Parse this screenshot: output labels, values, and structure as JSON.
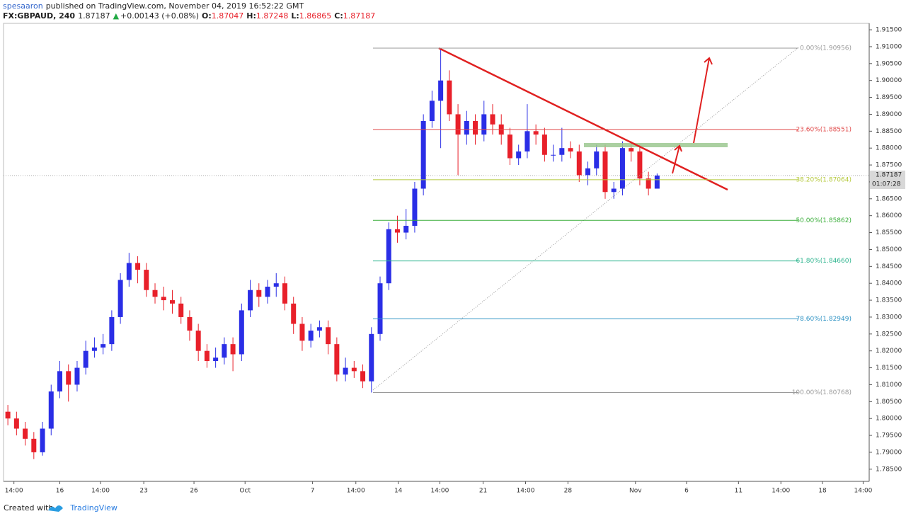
{
  "header": {
    "author": "spesaaron",
    "published": "published on TradingView.com, November 04, 2019 16:52:22 GMT",
    "symbol": "FX:GBPAUD, 240",
    "last": "1.87187",
    "change_arrow": "▲",
    "change": "+0.00143 (+0.08%)",
    "ohlc": [
      {
        "label": "O:",
        "value": "1.87047"
      },
      {
        "label": "H:",
        "value": "1.87248"
      },
      {
        "label": "L:",
        "value": "1.86865"
      },
      {
        "label": "C:",
        "value": "1.87187"
      }
    ]
  },
  "footer": {
    "created": "Created with",
    "brand": "TradingView"
  },
  "chart_data": {
    "type": "candlestick",
    "up_color": "#2a2ee6",
    "down_color": "#e8202a",
    "x": [
      0.5,
      1.5,
      2.5,
      3.5,
      4.5,
      5.5,
      6.5,
      7.5,
      8.5,
      9.5,
      10.5,
      11.5,
      12.5,
      13.5,
      14.5,
      15.5,
      16.5,
      17.5,
      18.5,
      19.5,
      20.5,
      21.5,
      22.5,
      23.5,
      24.5,
      25.5,
      26.5,
      27.5,
      28.5,
      29.5,
      30.5,
      31.5,
      32.5,
      33.5,
      34.5,
      35.5,
      36.5,
      37.5,
      38.5,
      39.5,
      40.5,
      41.5,
      42.5,
      43.5,
      44.5,
      45.5,
      46.5,
      47.5,
      48.5,
      49.5,
      50.5,
      51.5,
      52.5,
      53.5,
      54.5,
      55.5,
      56.5,
      57.5,
      58.5,
      59.5,
      60.5,
      61.5,
      62.5,
      63.5,
      64.5,
      65.5,
      66.5,
      67.5,
      68.5,
      69.5,
      70.5,
      71.5,
      72.5,
      73.5,
      74.5,
      75.5
    ],
    "open": [
      1.802,
      1.8,
      1.797,
      1.794,
      1.79,
      1.797,
      1.808,
      1.814,
      1.81,
      1.815,
      1.82,
      1.821,
      1.822,
      1.83,
      1.841,
      1.846,
      1.844,
      1.838,
      1.836,
      1.835,
      1.834,
      1.83,
      1.826,
      1.82,
      1.817,
      1.818,
      1.822,
      1.819,
      1.832,
      1.838,
      1.836,
      1.839,
      1.84,
      1.834,
      1.828,
      1.823,
      1.826,
      1.827,
      1.822,
      1.813,
      1.815,
      1.814,
      1.811,
      1.825,
      1.84,
      1.856,
      1.855,
      1.857,
      1.868,
      1.888,
      1.894,
      1.9,
      1.89,
      1.884,
      1.888,
      1.884,
      1.89,
      1.887,
      1.884,
      1.877,
      1.879,
      1.885,
      1.884,
      1.878,
      1.878,
      1.88,
      1.879,
      1.872,
      1.874,
      1.879,
      1.867,
      1.868,
      1.88,
      1.879,
      1.871,
      1.868
    ],
    "high": [
      1.804,
      1.802,
      1.799,
      1.796,
      1.799,
      1.81,
      1.817,
      1.816,
      1.817,
      1.823,
      1.824,
      1.825,
      1.832,
      1.843,
      1.849,
      1.848,
      1.846,
      1.84,
      1.839,
      1.838,
      1.836,
      1.832,
      1.828,
      1.822,
      1.821,
      1.824,
      1.824,
      1.834,
      1.841,
      1.84,
      1.841,
      1.843,
      1.842,
      1.836,
      1.83,
      1.828,
      1.829,
      1.829,
      1.824,
      1.818,
      1.817,
      1.816,
      1.827,
      1.842,
      1.858,
      1.86,
      1.862,
      1.87,
      1.89,
      1.897,
      1.90956,
      1.903,
      1.893,
      1.891,
      1.89,
      1.894,
      1.893,
      1.89,
      1.886,
      1.881,
      1.893,
      1.887,
      1.886,
      1.881,
      1.886,
      1.882,
      1.881,
      1.876,
      1.881,
      1.881,
      1.87,
      1.882,
      1.882,
      1.881,
      1.873,
      1.87248
    ],
    "low": [
      1.798,
      1.795,
      1.792,
      1.788,
      1.789,
      1.795,
      1.806,
      1.805,
      1.808,
      1.813,
      1.818,
      1.819,
      1.82,
      1.828,
      1.839,
      1.84,
      1.836,
      1.834,
      1.832,
      1.831,
      1.828,
      1.823,
      1.817,
      1.815,
      1.815,
      1.816,
      1.814,
      1.817,
      1.83,
      1.833,
      1.834,
      1.836,
      1.832,
      1.825,
      1.82,
      1.821,
      1.824,
      1.819,
      1.811,
      1.811,
      1.812,
      1.809,
      1.80768,
      1.823,
      1.838,
      1.852,
      1.853,
      1.855,
      1.866,
      1.886,
      1.88,
      1.888,
      1.872,
      1.881,
      1.881,
      1.882,
      1.884,
      1.881,
      1.875,
      1.875,
      1.877,
      1.881,
      1.876,
      1.876,
      1.876,
      1.877,
      1.87,
      1.869,
      1.872,
      1.865,
      1.865,
      1.866,
      1.876,
      1.869,
      1.866,
      1.86865
    ],
    "close": [
      1.8,
      1.797,
      1.794,
      1.79,
      1.797,
      1.808,
      1.814,
      1.81,
      1.815,
      1.82,
      1.821,
      1.822,
      1.83,
      1.841,
      1.846,
      1.844,
      1.838,
      1.836,
      1.835,
      1.834,
      1.83,
      1.826,
      1.82,
      1.817,
      1.818,
      1.822,
      1.819,
      1.832,
      1.838,
      1.836,
      1.839,
      1.84,
      1.834,
      1.828,
      1.823,
      1.826,
      1.827,
      1.822,
      1.813,
      1.815,
      1.814,
      1.811,
      1.825,
      1.84,
      1.856,
      1.855,
      1.857,
      1.868,
      1.888,
      1.894,
      1.9,
      1.89,
      1.884,
      1.888,
      1.884,
      1.89,
      1.887,
      1.884,
      1.877,
      1.879,
      1.885,
      1.884,
      1.878,
      1.878,
      1.88,
      1.879,
      1.872,
      1.874,
      1.879,
      1.867,
      1.868,
      1.88,
      1.879,
      1.871,
      1.868,
      1.87187
    ],
    "xlim": [
      0,
      100
    ],
    "ylim": [
      1.7814,
      1.9169
    ],
    "yticks": [
      {
        "value": 1.785,
        "label": "1.78500"
      },
      {
        "value": 1.79,
        "label": "1.79000"
      },
      {
        "value": 1.795,
        "label": "1.79500"
      },
      {
        "value": 1.8,
        "label": "1.80000"
      },
      {
        "value": 1.805,
        "label": "1.80500"
      },
      {
        "value": 1.81,
        "label": "1.81000"
      },
      {
        "value": 1.815,
        "label": "1.81500"
      },
      {
        "value": 1.82,
        "label": "1.82000"
      },
      {
        "value": 1.825,
        "label": "1.82500"
      },
      {
        "value": 1.83,
        "label": "1.83000"
      },
      {
        "value": 1.835,
        "label": "1.83500"
      },
      {
        "value": 1.84,
        "label": "1.84000"
      },
      {
        "value": 1.845,
        "label": "1.84500"
      },
      {
        "value": 1.85,
        "label": "1.85000"
      },
      {
        "value": 1.855,
        "label": "1.85500"
      },
      {
        "value": 1.86,
        "label": "1.86000"
      },
      {
        "value": 1.865,
        "label": "1.86500"
      },
      {
        "value": 1.87,
        "label": "1.87000"
      },
      {
        "value": 1.875,
        "label": "1.87500"
      },
      {
        "value": 1.88,
        "label": "1.88000"
      },
      {
        "value": 1.885,
        "label": "1.88500"
      },
      {
        "value": 1.89,
        "label": "1.89000"
      },
      {
        "value": 1.895,
        "label": "1.89500"
      },
      {
        "value": 1.9,
        "label": "1.90000"
      },
      {
        "value": 1.905,
        "label": "1.90500"
      },
      {
        "value": 1.91,
        "label": "1.91000"
      },
      {
        "value": 1.915,
        "label": "1.91500"
      }
    ],
    "xticks": [
      {
        "value": 1.2,
        "label": "14:00"
      },
      {
        "value": 6.5,
        "label": "16"
      },
      {
        "value": 11.2,
        "label": "14:00"
      },
      {
        "value": 16.2,
        "label": "23"
      },
      {
        "value": 22,
        "label": "26"
      },
      {
        "value": 27.9,
        "label": "Oct"
      },
      {
        "value": 35.7,
        "label": "7"
      },
      {
        "value": 40.7,
        "label": "14:00"
      },
      {
        "value": 45.6,
        "label": "14"
      },
      {
        "value": 50.4,
        "label": "14:00"
      },
      {
        "value": 55.4,
        "label": "21"
      },
      {
        "value": 60.3,
        "label": "14:00"
      },
      {
        "value": 65.2,
        "label": "28"
      },
      {
        "value": 73,
        "label": "Nov"
      },
      {
        "value": 78.9,
        "label": "6"
      },
      {
        "value": 84.9,
        "label": "11"
      },
      {
        "value": 89.8,
        "label": "14:00"
      },
      {
        "value": 94.6,
        "label": "18"
      },
      {
        "value": 99.3,
        "label": "14:00"
      }
    ],
    "fib_levels": [
      {
        "value": 1.90956,
        "label": "0.00%(1.90956)",
        "color": "#9a9a9a"
      },
      {
        "value": 1.88551,
        "label": "23.60%(1.88551)",
        "color": "#e04a4a"
      },
      {
        "value": 1.87064,
        "label": "38.20%(1.87064)",
        "color": "#b5c93c"
      },
      {
        "value": 1.85862,
        "label": "50.00%(1.85862)",
        "color": "#3aae3a"
      },
      {
        "value": 1.8466,
        "label": "61.80%(1.84660)",
        "color": "#2fb58f"
      },
      {
        "value": 1.82949,
        "label": "78.60%(1.82949)",
        "color": "#2f93c4"
      },
      {
        "value": 1.80768,
        "label": "100.00%(1.80768)",
        "color": "#9a9a9a"
      }
    ],
    "last_price": {
      "value": 1.87187,
      "label": "1.87187"
    },
    "countdown": "01:07:28"
  }
}
